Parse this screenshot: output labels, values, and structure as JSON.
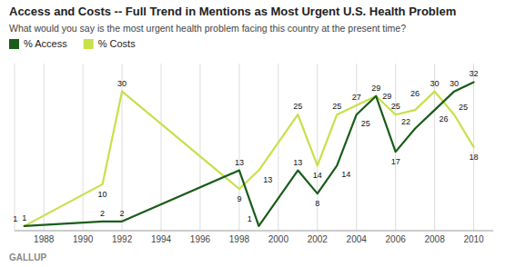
{
  "chart_data": {
    "type": "line",
    "title": "Access and Costs -- Full Trend in Mentions as Most Urgent U.S. Health Problem",
    "subtitle": "What would you say is the most urgent health problem facing this country at the present time?",
    "x": [
      1987,
      1991,
      1992,
      1998,
      1999,
      2001,
      2002,
      2003,
      2004,
      2005,
      2006,
      2007,
      2008,
      2009,
      2010
    ],
    "series": [
      {
        "name": "% Access",
        "color": "#1a5c1a",
        "values": [
          1,
          2,
          2,
          13,
          1,
          13,
          8,
          14,
          25,
          29,
          17,
          22,
          26,
          30,
          32
        ]
      },
      {
        "name": "% Costs",
        "color": "#c8e04a",
        "values": [
          1,
          10,
          30,
          9,
          13,
          25,
          14,
          25,
          27,
          29,
          25,
          26,
          30,
          25,
          18
        ]
      }
    ],
    "xlim": [
      1986.5,
      2011.0
    ],
    "ylim": [
      0,
      36
    ],
    "xticks": [
      1988,
      1990,
      1992,
      1994,
      1996,
      1998,
      2000,
      2002,
      2004,
      2006,
      2008,
      2010
    ],
    "grid": true,
    "legend": "upper left",
    "data_labels": true,
    "tick_labels": "x",
    "annotations": [
      "GALLUP"
    ]
  }
}
